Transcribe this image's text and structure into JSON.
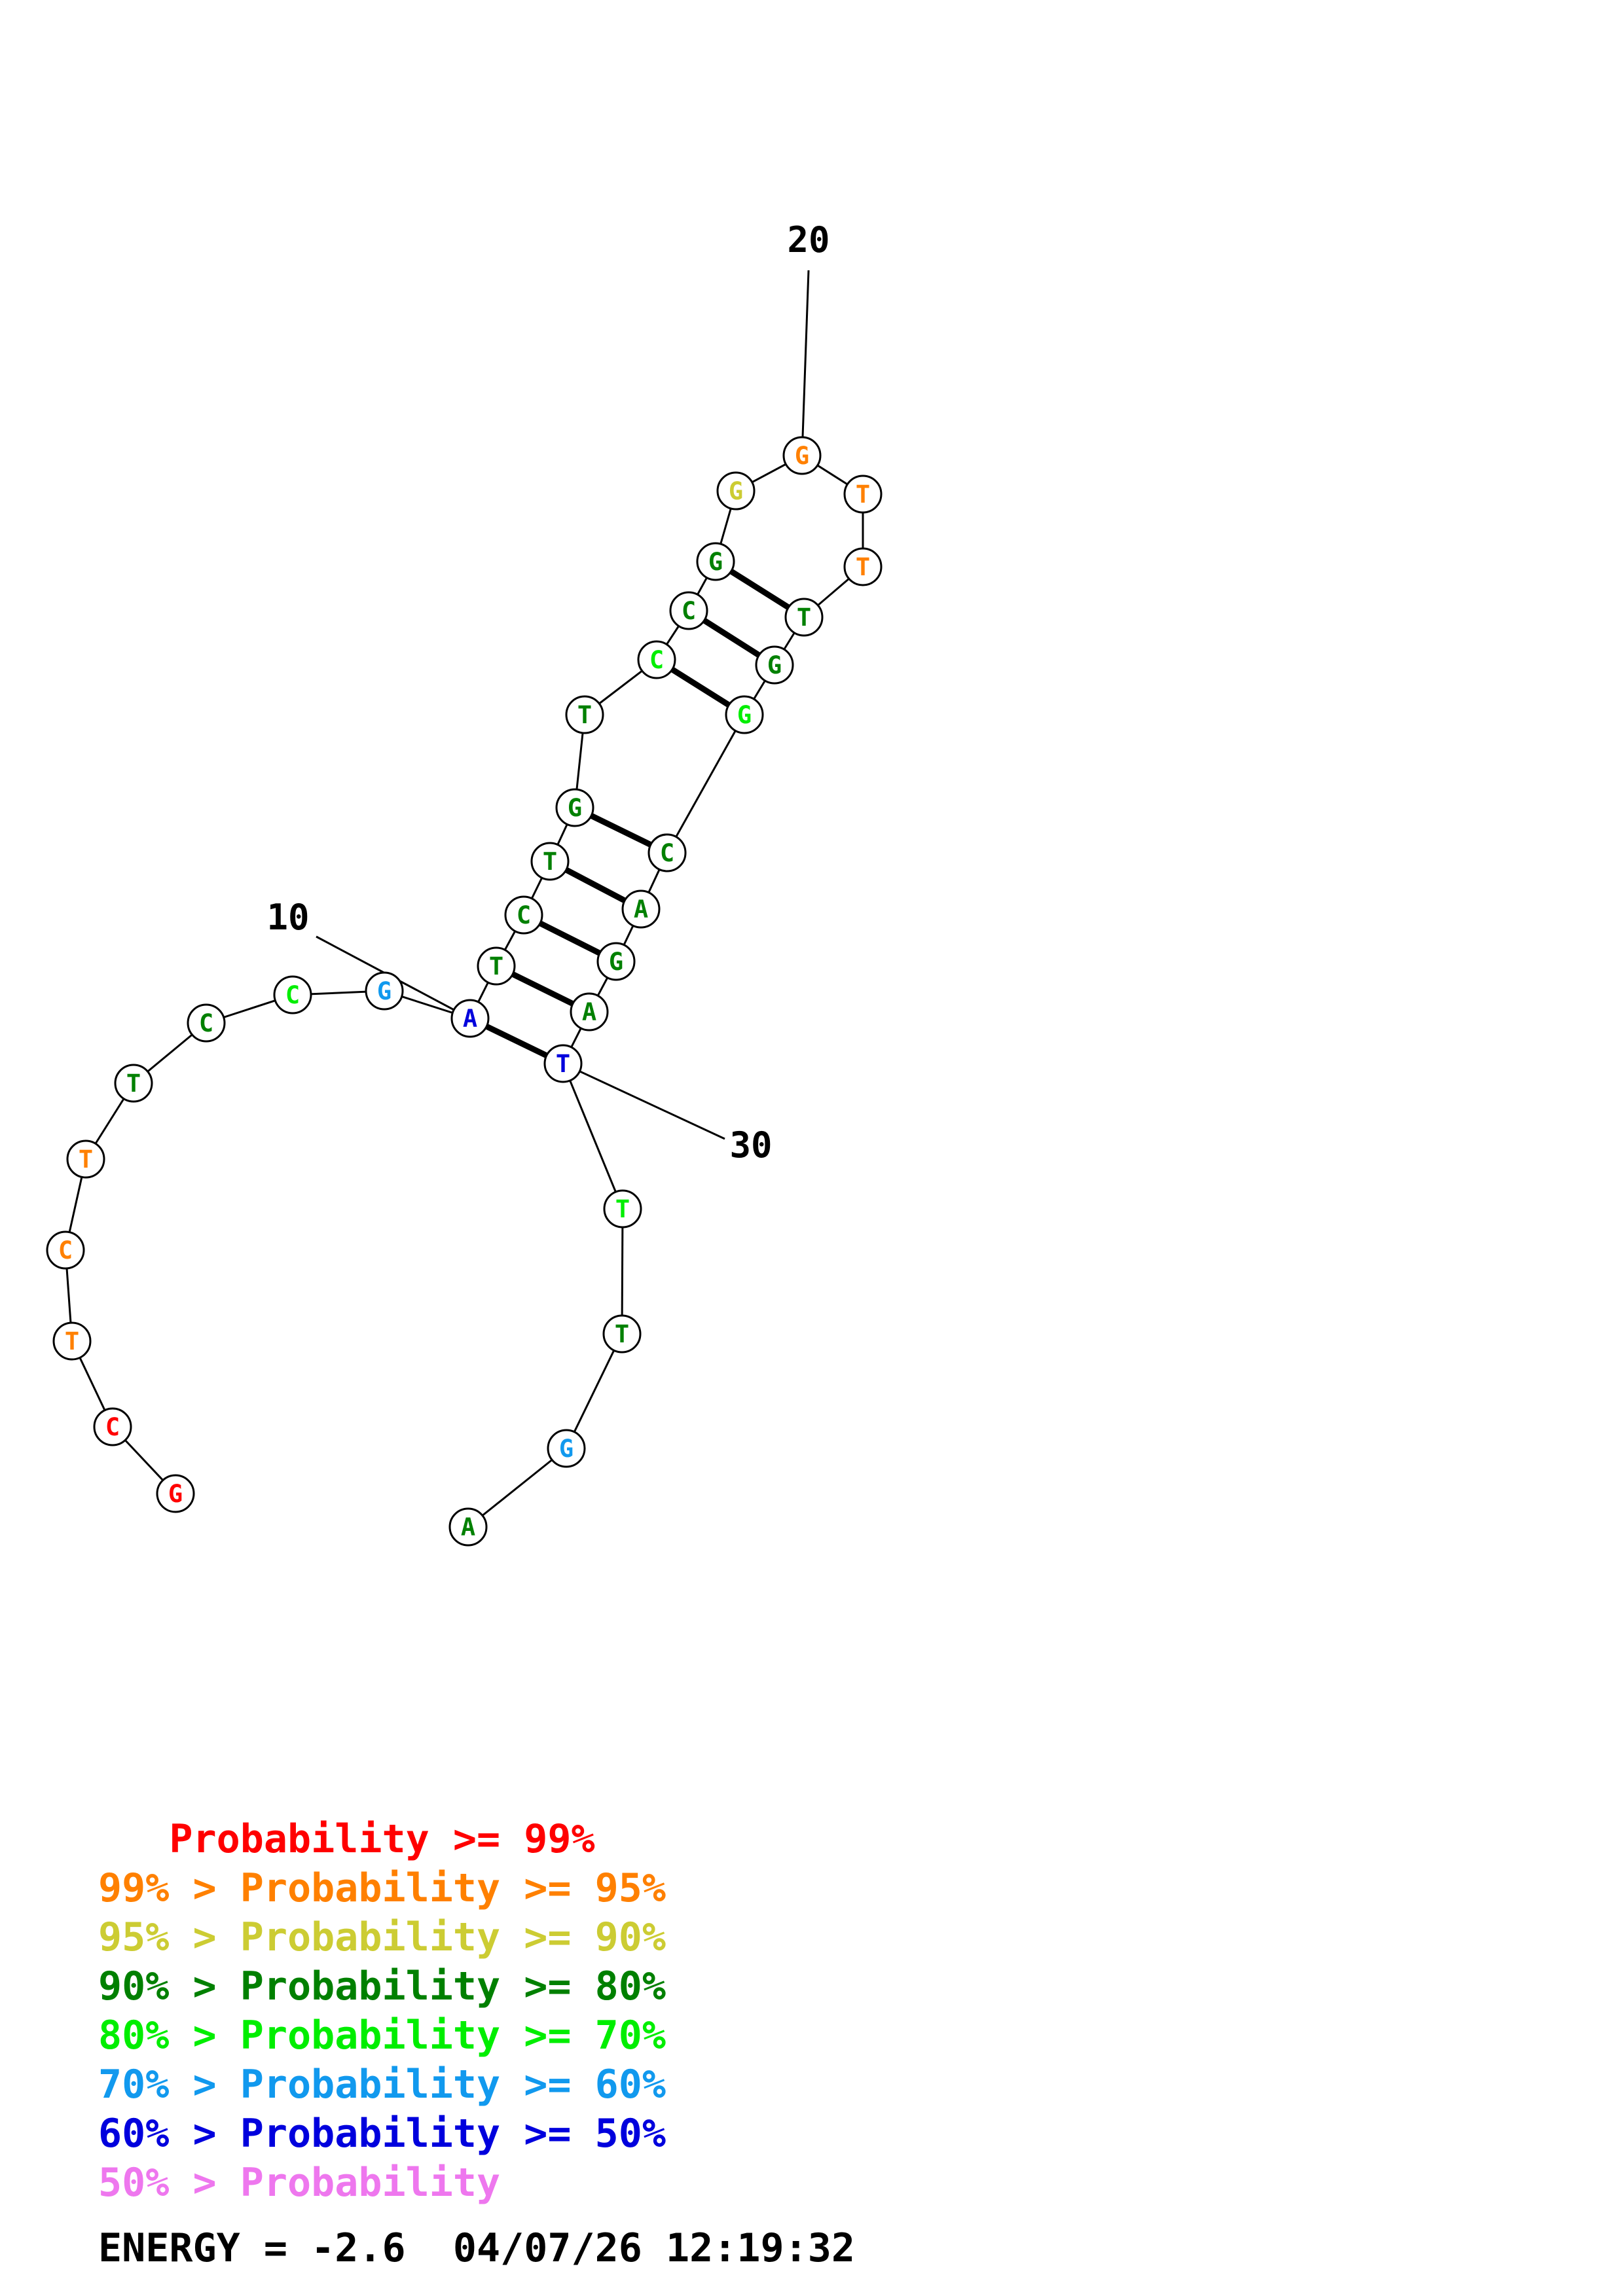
{
  "colors": {
    "p99": "#ff0000",
    "p95": "#ff8000",
    "p90": "#cccc33",
    "p80": "#008000",
    "p70": "#00ee00",
    "p60": "#1199ee",
    "p50": "#0000dd",
    "plow": "#ee77ee"
  },
  "nucleotides": [
    {
      "index": 1,
      "base": "G",
      "color": "p99"
    },
    {
      "index": 2,
      "base": "C",
      "color": "p99"
    },
    {
      "index": 3,
      "base": "T",
      "color": "p95"
    },
    {
      "index": 4,
      "base": "C",
      "color": "p95"
    },
    {
      "index": 5,
      "base": "T",
      "color": "p95"
    },
    {
      "index": 6,
      "base": "T",
      "color": "p80"
    },
    {
      "index": 7,
      "base": "C",
      "color": "p80"
    },
    {
      "index": 8,
      "base": "C",
      "color": "p70"
    },
    {
      "index": 9,
      "base": "G",
      "color": "p60"
    },
    {
      "index": 10,
      "base": "A",
      "color": "p50"
    },
    {
      "index": 11,
      "base": "T",
      "color": "p80"
    },
    {
      "index": 12,
      "base": "C",
      "color": "p80"
    },
    {
      "index": 13,
      "base": "T",
      "color": "p80"
    },
    {
      "index": 14,
      "base": "G",
      "color": "p80"
    },
    {
      "index": 15,
      "base": "T",
      "color": "p80"
    },
    {
      "index": 16,
      "base": "C",
      "color": "p70"
    },
    {
      "index": 17,
      "base": "C",
      "color": "p80"
    },
    {
      "index": 18,
      "base": "G",
      "color": "p80"
    },
    {
      "index": 19,
      "base": "G",
      "color": "p90"
    },
    {
      "index": 20,
      "base": "G",
      "color": "p95"
    },
    {
      "index": 21,
      "base": "T",
      "color": "p95"
    },
    {
      "index": 22,
      "base": "T",
      "color": "p95"
    },
    {
      "index": 23,
      "base": "T",
      "color": "p80"
    },
    {
      "index": 24,
      "base": "G",
      "color": "p80"
    },
    {
      "index": 25,
      "base": "G",
      "color": "p70"
    },
    {
      "index": 26,
      "base": "C",
      "color": "p80"
    },
    {
      "index": 27,
      "base": "A",
      "color": "p80"
    },
    {
      "index": 28,
      "base": "G",
      "color": "p80"
    },
    {
      "index": 29,
      "base": "A",
      "color": "p80"
    },
    {
      "index": 30,
      "base": "T",
      "color": "p50"
    },
    {
      "index": 31,
      "base": "T",
      "color": "p70"
    },
    {
      "index": 32,
      "base": "T",
      "color": "p80"
    },
    {
      "index": 33,
      "base": "G",
      "color": "p60"
    },
    {
      "index": 34,
      "base": "A",
      "color": "p80"
    }
  ],
  "pairs": [
    [
      10,
      30
    ],
    [
      11,
      29
    ],
    [
      12,
      28
    ],
    [
      13,
      27
    ],
    [
      14,
      26
    ],
    [
      16,
      25
    ],
    [
      17,
      24
    ],
    [
      18,
      23
    ]
  ],
  "position_labels": [
    {
      "index": 10,
      "text": "10"
    },
    {
      "index": 20,
      "text": "20"
    },
    {
      "index": 30,
      "text": "30"
    }
  ],
  "legend": [
    {
      "prefix": "   ",
      "text": "Probability >= 99%",
      "color": "p99"
    },
    {
      "prefix": "99% > ",
      "text": "Probability >= 95%",
      "color": "p95"
    },
    {
      "prefix": "95% > ",
      "text": "Probability >= 90%",
      "color": "p90"
    },
    {
      "prefix": "90% > ",
      "text": "Probability >= 80%",
      "color": "p80"
    },
    {
      "prefix": "80% > ",
      "text": "Probability >= 70%",
      "color": "p70"
    },
    {
      "prefix": "70% > ",
      "text": "Probability >= 60%",
      "color": "p60"
    },
    {
      "prefix": "60% > ",
      "text": "Probability >= 50%",
      "color": "p50"
    },
    {
      "prefix": "50% > ",
      "text": "Probability",
      "color": "plow"
    }
  ],
  "footer": {
    "energy": "ENERGY = -2.6",
    "timestamp": "04/07/26 12:19:32"
  }
}
